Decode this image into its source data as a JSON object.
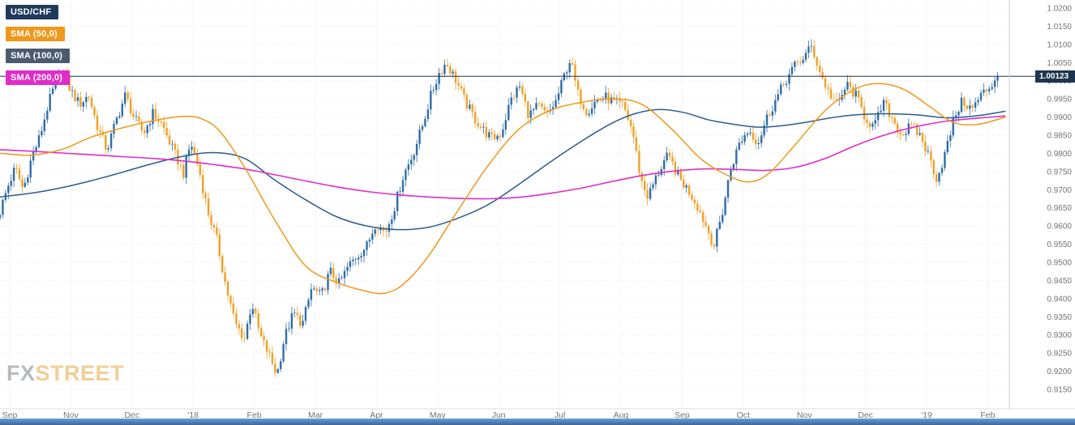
{
  "pair": "USD/CHF",
  "legend": [
    {
      "label": "USD/CHF",
      "color": "#1f3a5a"
    },
    {
      "label": "SMA (50,0)",
      "color": "#f0981b"
    },
    {
      "label": "SMA (100,0)",
      "color": "#4a5a70"
    },
    {
      "label": "SMA (200,0)",
      "color": "#e02cc8"
    }
  ],
  "current_price": {
    "value": "1.00123",
    "line_color": "#1e3550",
    "badge_bg": "#1e3550",
    "badge_text_color": "#ffffff"
  },
  "watermark": {
    "fx": "FX",
    "street": "STREET"
  },
  "bottom_bar": {
    "top_color": "#6e9ecf",
    "bottom_color": "#39679f"
  },
  "chart_data": {
    "type": "candlestick",
    "pair": "USD/CHF",
    "legend_position": "top-left",
    "grid": true,
    "last_price": 1.00123,
    "y_range": [
      0.915,
      1.02
    ],
    "y_ticks": [
      "1.0200",
      "1.0150",
      "1.0100",
      "1.0050",
      "1.0000",
      "0.9950",
      "0.9900",
      "0.9850",
      "0.9800",
      "0.9750",
      "0.9700",
      "0.9650",
      "0.9600",
      "0.9550",
      "0.9500",
      "0.9450",
      "0.9400",
      "0.9350",
      "0.9300",
      "0.9250",
      "0.9200",
      "0.9150"
    ],
    "timeframe_labels": [
      "Sep",
      "Nov",
      "Dec",
      "'18",
      "Feb",
      "Mar",
      "Apr",
      "May",
      "Jun",
      "Jul",
      "Aug",
      "Sep",
      "Oct",
      "Nov",
      "Dec",
      "'19",
      "Feb"
    ],
    "colors": {
      "up": "#2f6da8",
      "down": "#f0a028",
      "sma50": "#f0981b",
      "sma100": "#2a5d8f",
      "sma200": "#e02cc8",
      "grid": "#e5e5e5",
      "axis_text": "#737373"
    },
    "candle_count": 360,
    "t_max": 16.32,
    "price_path": [
      [
        0.0,
        0.964
      ],
      [
        0.12,
        0.9705
      ],
      [
        0.25,
        0.976
      ],
      [
        0.38,
        0.97
      ],
      [
        0.52,
        0.979
      ],
      [
        0.65,
        0.9845
      ],
      [
        0.78,
        0.993
      ],
      [
        0.92,
        1.0
      ],
      [
        1.02,
        1.0035
      ],
      [
        1.15,
        0.9975
      ],
      [
        1.3,
        0.9935
      ],
      [
        1.45,
        0.996
      ],
      [
        1.6,
        0.987
      ],
      [
        1.75,
        0.9809
      ],
      [
        1.9,
        0.989
      ],
      [
        2.05,
        0.996
      ],
      [
        2.2,
        0.9895
      ],
      [
        2.35,
        0.9855
      ],
      [
        2.5,
        0.991
      ],
      [
        2.65,
        0.988
      ],
      [
        2.8,
        0.982
      ],
      [
        3.0,
        0.9745
      ],
      [
        3.12,
        0.983
      ],
      [
        3.25,
        0.976
      ],
      [
        3.4,
        0.964
      ],
      [
        3.55,
        0.956
      ],
      [
        3.7,
        0.943
      ],
      [
        3.85,
        0.933
      ],
      [
        4.0,
        0.929
      ],
      [
        4.12,
        0.939
      ],
      [
        4.25,
        0.93
      ],
      [
        4.4,
        0.9245
      ],
      [
        4.53,
        0.919
      ],
      [
        4.65,
        0.929
      ],
      [
        4.8,
        0.936
      ],
      [
        4.95,
        0.933
      ],
      [
        5.1,
        0.943
      ],
      [
        5.25,
        0.9405
      ],
      [
        5.4,
        0.9475
      ],
      [
        5.55,
        0.944
      ],
      [
        5.7,
        0.949
      ],
      [
        5.85,
        0.952
      ],
      [
        6.0,
        0.9545
      ],
      [
        6.15,
        0.961
      ],
      [
        6.3,
        0.958
      ],
      [
        6.45,
        0.965
      ],
      [
        6.6,
        0.974
      ],
      [
        6.75,
        0.9795
      ],
      [
        6.9,
        0.987
      ],
      [
        7.05,
        0.996
      ],
      [
        7.18,
        1.002
      ],
      [
        7.3,
        1.005
      ],
      [
        7.45,
        1.0005
      ],
      [
        7.6,
        0.9945
      ],
      [
        7.75,
        0.99
      ],
      [
        7.9,
        0.9865
      ],
      [
        8.05,
        0.984
      ],
      [
        8.2,
        0.9855
      ],
      [
        8.35,
        0.9945
      ],
      [
        8.5,
        0.9985
      ],
      [
        8.65,
        0.9905
      ],
      [
        8.8,
        0.993
      ],
      [
        8.95,
        0.9905
      ],
      [
        9.1,
        0.9945
      ],
      [
        9.25,
        1.0025
      ],
      [
        9.33,
        1.006
      ],
      [
        9.45,
        0.9965
      ],
      [
        9.6,
        0.9915
      ],
      [
        9.75,
        0.9945
      ],
      [
        9.9,
        0.9955
      ],
      [
        10.05,
        0.994
      ],
      [
        10.2,
        0.993
      ],
      [
        10.35,
        0.986
      ],
      [
        10.48,
        0.973
      ],
      [
        10.6,
        0.968
      ],
      [
        10.75,
        0.974
      ],
      [
        10.9,
        0.979
      ],
      [
        11.0,
        0.977
      ],
      [
        11.12,
        0.973
      ],
      [
        11.25,
        0.97
      ],
      [
        11.4,
        0.966
      ],
      [
        11.55,
        0.96
      ],
      [
        11.68,
        0.9545
      ],
      [
        11.82,
        0.964
      ],
      [
        11.95,
        0.9755
      ],
      [
        12.1,
        0.983
      ],
      [
        12.25,
        0.9865
      ],
      [
        12.4,
        0.983
      ],
      [
        12.55,
        0.99
      ],
      [
        12.7,
        0.995
      ],
      [
        12.85,
        1.0
      ],
      [
        13.0,
        1.004
      ],
      [
        13.15,
        1.0065
      ],
      [
        13.28,
        1.0094
      ],
      [
        13.42,
        1.002
      ],
      [
        13.55,
        0.997
      ],
      [
        13.7,
        0.993
      ],
      [
        13.85,
        0.999
      ],
      [
        14.0,
        0.996
      ],
      [
        14.15,
        0.99
      ],
      [
        14.3,
        0.987
      ],
      [
        14.45,
        0.994
      ],
      [
        14.6,
        0.9895
      ],
      [
        14.75,
        0.985
      ],
      [
        14.9,
        0.9875
      ],
      [
        15.05,
        0.985
      ],
      [
        15.2,
        0.979
      ],
      [
        15.33,
        0.9728
      ],
      [
        15.48,
        0.981
      ],
      [
        15.62,
        0.9905
      ],
      [
        15.75,
        0.9945
      ],
      [
        15.9,
        0.992
      ],
      [
        16.05,
        0.996
      ],
      [
        16.2,
        0.9985
      ],
      [
        16.32,
        1.0012
      ]
    ],
    "sma50": [
      [
        0.0,
        0.98
      ],
      [
        0.5,
        0.9795
      ],
      [
        1.0,
        0.981
      ],
      [
        1.5,
        0.9845
      ],
      [
        2.0,
        0.987
      ],
      [
        2.5,
        0.989
      ],
      [
        3.0,
        0.9902
      ],
      [
        3.3,
        0.9895
      ],
      [
        3.6,
        0.986
      ],
      [
        4.0,
        0.9762
      ],
      [
        4.5,
        0.9615
      ],
      [
        5.0,
        0.949
      ],
      [
        5.5,
        0.9445
      ],
      [
        6.0,
        0.942
      ],
      [
        6.3,
        0.9415
      ],
      [
        6.6,
        0.944
      ],
      [
        7.0,
        0.9515
      ],
      [
        7.5,
        0.9645
      ],
      [
        8.0,
        0.977
      ],
      [
        8.5,
        0.9868
      ],
      [
        9.0,
        0.9918
      ],
      [
        9.5,
        0.994
      ],
      [
        10.0,
        0.995
      ],
      [
        10.5,
        0.9935
      ],
      [
        11.0,
        0.9865
      ],
      [
        11.5,
        0.978
      ],
      [
        12.0,
        0.9732
      ],
      [
        12.3,
        0.9722
      ],
      [
        12.6,
        0.9748
      ],
      [
        13.0,
        0.9822
      ],
      [
        13.5,
        0.9918
      ],
      [
        14.0,
        0.9978
      ],
      [
        14.4,
        0.9992
      ],
      [
        14.8,
        0.9975
      ],
      [
        15.2,
        0.993
      ],
      [
        15.6,
        0.9885
      ],
      [
        16.0,
        0.988
      ],
      [
        16.45,
        0.99
      ]
    ],
    "sma100": [
      [
        0.0,
        0.968
      ],
      [
        0.5,
        0.969
      ],
      [
        1.0,
        0.9705
      ],
      [
        1.5,
        0.9725
      ],
      [
        2.0,
        0.9748
      ],
      [
        2.5,
        0.9772
      ],
      [
        3.0,
        0.9792
      ],
      [
        3.5,
        0.9802
      ],
      [
        4.0,
        0.9786
      ],
      [
        4.5,
        0.9726
      ],
      [
        5.0,
        0.9672
      ],
      [
        5.5,
        0.9626
      ],
      [
        6.0,
        0.96
      ],
      [
        6.5,
        0.959
      ],
      [
        7.0,
        0.9596
      ],
      [
        7.5,
        0.9622
      ],
      [
        8.0,
        0.966
      ],
      [
        8.5,
        0.9716
      ],
      [
        9.0,
        0.9776
      ],
      [
        9.5,
        0.9832
      ],
      [
        10.0,
        0.9882
      ],
      [
        10.4,
        0.991
      ],
      [
        10.8,
        0.9921
      ],
      [
        11.2,
        0.9912
      ],
      [
        11.6,
        0.9892
      ],
      [
        12.0,
        0.988
      ],
      [
        12.4,
        0.9872
      ],
      [
        12.8,
        0.9876
      ],
      [
        13.2,
        0.9886
      ],
      [
        13.6,
        0.9898
      ],
      [
        14.0,
        0.9906
      ],
      [
        14.5,
        0.9909
      ],
      [
        15.0,
        0.9906
      ],
      [
        15.5,
        0.9898
      ],
      [
        16.0,
        0.9904
      ],
      [
        16.45,
        0.9916
      ]
    ],
    "sma200": [
      [
        0.0,
        0.981
      ],
      [
        0.5,
        0.9806
      ],
      [
        1.0,
        0.9801
      ],
      [
        1.5,
        0.9796
      ],
      [
        2.0,
        0.9791
      ],
      [
        2.5,
        0.9786
      ],
      [
        3.0,
        0.9779
      ],
      [
        3.5,
        0.9769
      ],
      [
        4.0,
        0.9757
      ],
      [
        4.5,
        0.9741
      ],
      [
        5.0,
        0.9724
      ],
      [
        5.5,
        0.9708
      ],
      [
        6.0,
        0.9695
      ],
      [
        6.5,
        0.9686
      ],
      [
        7.0,
        0.968
      ],
      [
        7.5,
        0.9676
      ],
      [
        8.0,
        0.9675
      ],
      [
        8.5,
        0.9679
      ],
      [
        9.0,
        0.969
      ],
      [
        9.5,
        0.9704
      ],
      [
        10.0,
        0.9722
      ],
      [
        10.5,
        0.9739
      ],
      [
        11.0,
        0.9751
      ],
      [
        11.5,
        0.9757
      ],
      [
        12.0,
        0.9756
      ],
      [
        12.5,
        0.9753
      ],
      [
        13.0,
        0.9761
      ],
      [
        13.5,
        0.9786
      ],
      [
        14.0,
        0.9822
      ],
      [
        14.5,
        0.9852
      ],
      [
        15.0,
        0.9874
      ],
      [
        15.5,
        0.9889
      ],
      [
        16.0,
        0.9897
      ],
      [
        16.45,
        0.9903
      ]
    ]
  }
}
